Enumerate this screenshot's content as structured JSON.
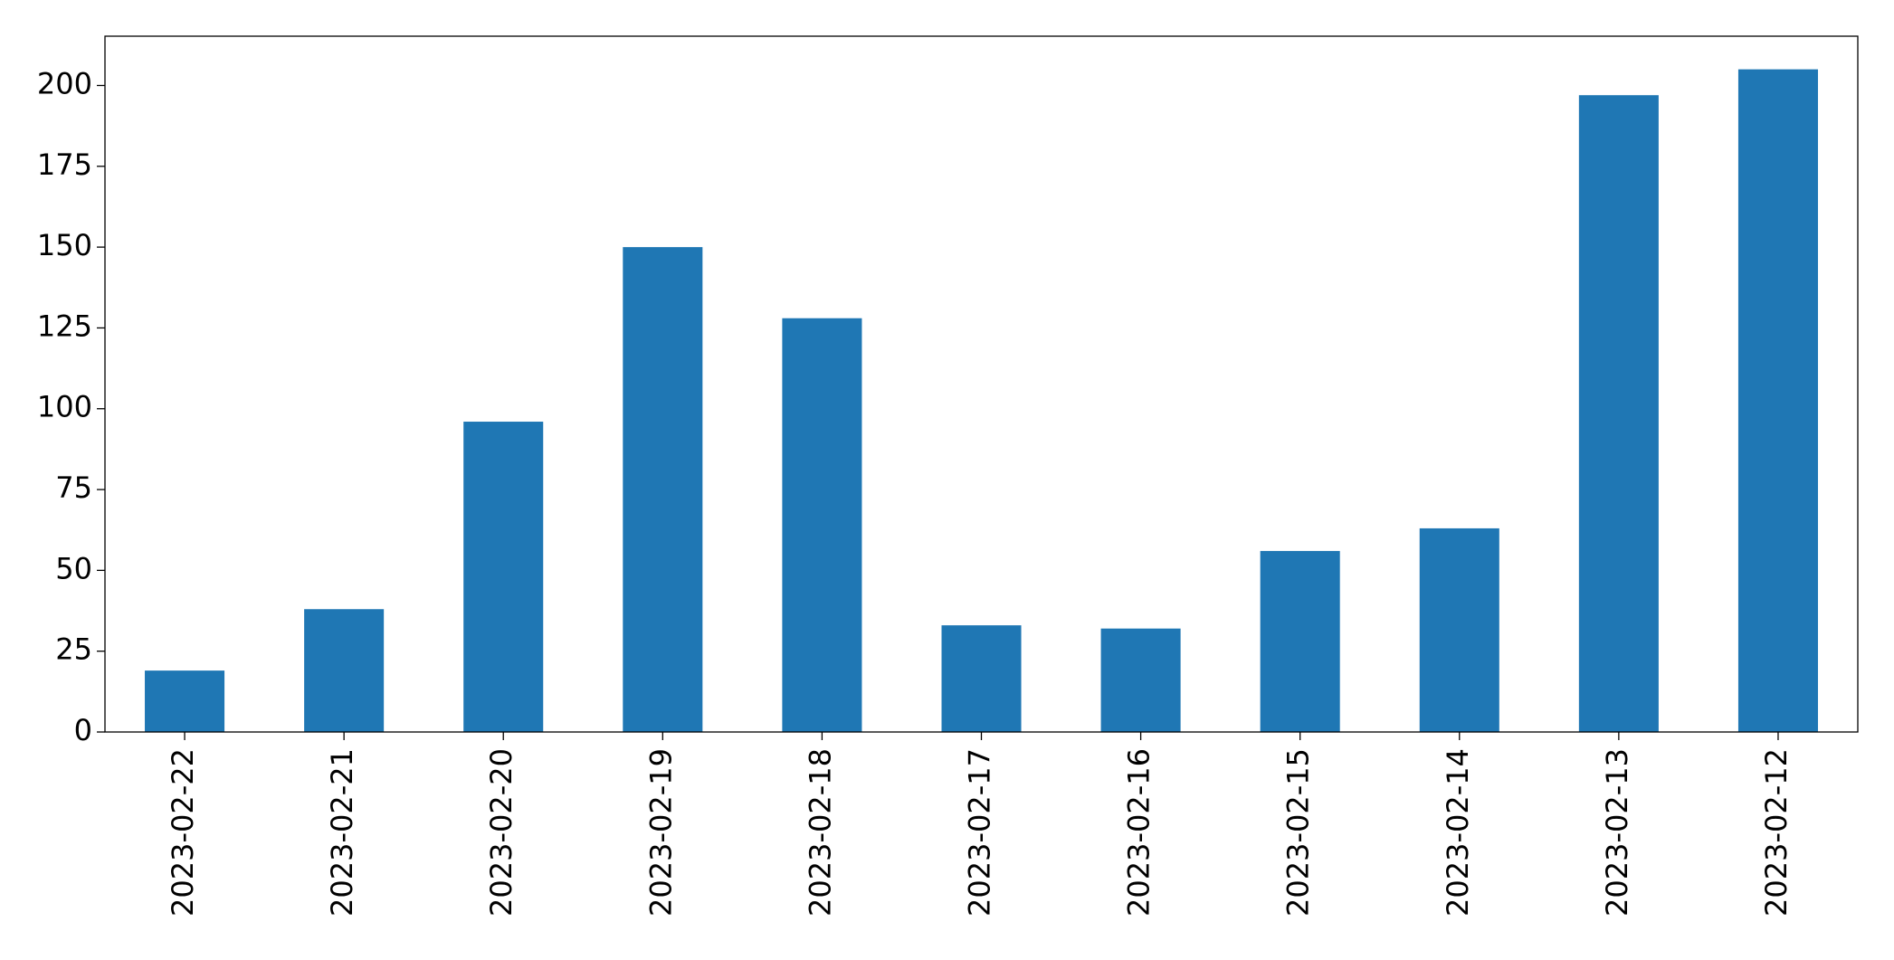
{
  "chart_data": {
    "type": "bar",
    "categories": [
      "2023-02-22",
      "2023-02-21",
      "2023-02-20",
      "2023-02-19",
      "2023-02-18",
      "2023-02-17",
      "2023-02-16",
      "2023-02-15",
      "2023-02-14",
      "2023-02-13",
      "2023-02-12"
    ],
    "values": [
      19,
      38,
      96,
      150,
      128,
      33,
      32,
      56,
      63,
      197,
      205
    ],
    "color": "#1f77b4",
    "ylim": [
      0,
      215.25
    ],
    "yticks": [
      0,
      25,
      50,
      75,
      100,
      125,
      150,
      175,
      200
    ],
    "grid": false
  }
}
